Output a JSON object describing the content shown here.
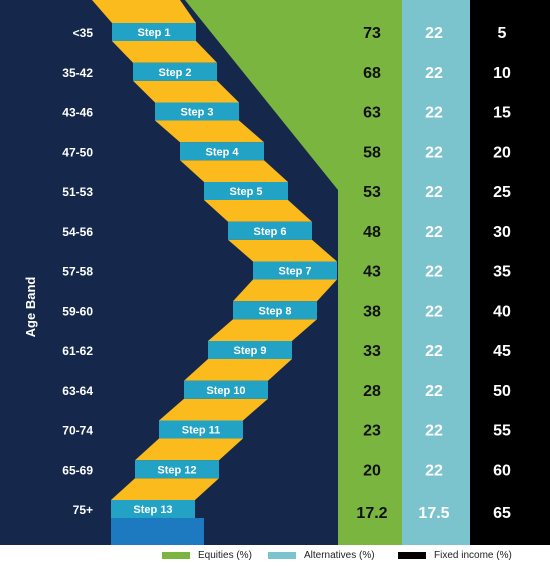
{
  "colors": {
    "background": "#15284b",
    "equities": "#7ab540",
    "alternatives": "#7bc3cd",
    "fixed_income": "#000000",
    "step_face": "#22a2c4",
    "step_tread": "#fbbb1d",
    "step_base": "#1d79c0"
  },
  "chart_data": {
    "type": "table",
    "ylabel": "Age Band",
    "categories": [
      "<35",
      "35-42",
      "43-46",
      "47-50",
      "51-53",
      "54-56",
      "57-58",
      "59-60",
      "61-62",
      "63-64",
      "70-74",
      "65-69",
      "75+"
    ],
    "steps": [
      "Step 1",
      "Step 2",
      "Step 3",
      "Step 4",
      "Step 5",
      "Step 6",
      "Step 7",
      "Step 8",
      "Step 9",
      "Step 10",
      "Step 11",
      "Step 12",
      "Step 13"
    ],
    "series": [
      {
        "name": "Equities (%)",
        "values": [
          "73",
          "68",
          "63",
          "58",
          "53",
          "48",
          "43",
          "38",
          "33",
          "28",
          "23",
          "20",
          "17.2"
        ]
      },
      {
        "name": "Alternatives (%)",
        "values": [
          "22",
          "22",
          "22",
          "22",
          "22",
          "22",
          "22",
          "22",
          "22",
          "22",
          "22",
          "22",
          "17.5"
        ]
      },
      {
        "name": "Fixed income (%)",
        "values": [
          "5",
          "10",
          "15",
          "20",
          "25",
          "30",
          "35",
          "40",
          "45",
          "50",
          "55",
          "60",
          "65"
        ]
      }
    ]
  }
}
